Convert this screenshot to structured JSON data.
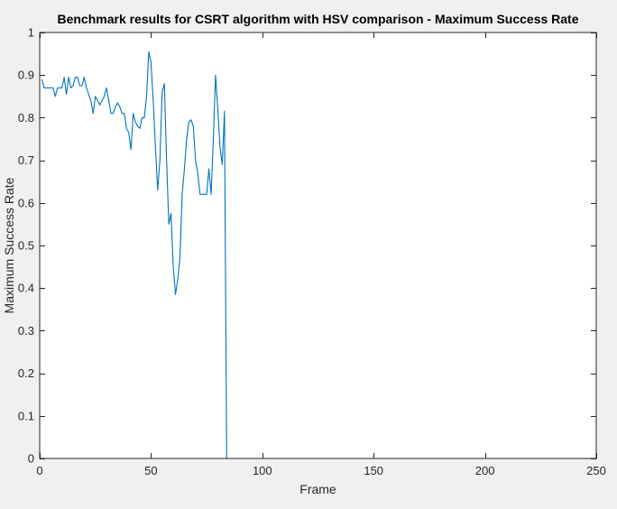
{
  "chart_data": {
    "type": "line",
    "title": "Benchmark results for CSRT algorithm with HSV comparison - Maximum Success Rate",
    "xlabel": "Frame",
    "ylabel": "Maximum Success Rate",
    "xlim": [
      0,
      250
    ],
    "ylim": [
      0,
      1
    ],
    "xticks": [
      "0",
      "50",
      "100",
      "150",
      "200",
      "250"
    ],
    "yticks": [
      "0",
      "0.1",
      "0.2",
      "0.3",
      "0.4",
      "0.5",
      "0.6",
      "0.7",
      "0.8",
      "0.9",
      "1"
    ],
    "grid": false,
    "legend": "none",
    "colors": {
      "line": "#0072bd",
      "axes": "#262626",
      "plot_background": "#ffffff",
      "figure_background": "#f0f0f0"
    },
    "series": [
      {
        "x": [
          1,
          2,
          3,
          4,
          5,
          6,
          7,
          8,
          9,
          10,
          11,
          12,
          13,
          14,
          15,
          16,
          17,
          18,
          19,
          20,
          21,
          22,
          23,
          24,
          25,
          26,
          27,
          28,
          29,
          30,
          31,
          32,
          33,
          34,
          35,
          36,
          37,
          38,
          39,
          40,
          41,
          42,
          43,
          44,
          45,
          46,
          47,
          48,
          49,
          50,
          51,
          52,
          53,
          54,
          55,
          56,
          57,
          58,
          59,
          60,
          61,
          62,
          63,
          64,
          65,
          66,
          67,
          68,
          69,
          70,
          71,
          72,
          73,
          74,
          75,
          76,
          77,
          78,
          79,
          80,
          81,
          82,
          83,
          84,
          90,
          100,
          150,
          200,
          239
        ],
        "y": [
          0.89,
          0.87,
          0.87,
          0.87,
          0.87,
          0.87,
          0.85,
          0.87,
          0.87,
          0.87,
          0.895,
          0.855,
          0.895,
          0.87,
          0.875,
          0.895,
          0.895,
          0.875,
          0.875,
          0.895,
          0.87,
          0.855,
          0.84,
          0.81,
          0.85,
          0.84,
          0.83,
          0.84,
          0.85,
          0.87,
          0.84,
          0.81,
          0.81,
          0.825,
          0.835,
          0.825,
          0.81,
          0.81,
          0.775,
          0.765,
          0.725,
          0.81,
          0.79,
          0.78,
          0.775,
          0.8,
          0.8,
          0.85,
          0.955,
          0.93,
          0.84,
          0.73,
          0.63,
          0.7,
          0.86,
          0.88,
          0.7,
          0.55,
          0.575,
          0.45,
          0.385,
          0.42,
          0.47,
          0.62,
          0.68,
          0.75,
          0.79,
          0.795,
          0.78,
          0.7,
          0.67,
          0.62,
          0.62,
          0.62,
          0.62,
          0.68,
          0.62,
          0.75,
          0.9,
          0.82,
          0.73,
          0.69,
          0.815,
          0,
          0,
          0,
          0,
          0,
          0
        ]
      }
    ]
  }
}
